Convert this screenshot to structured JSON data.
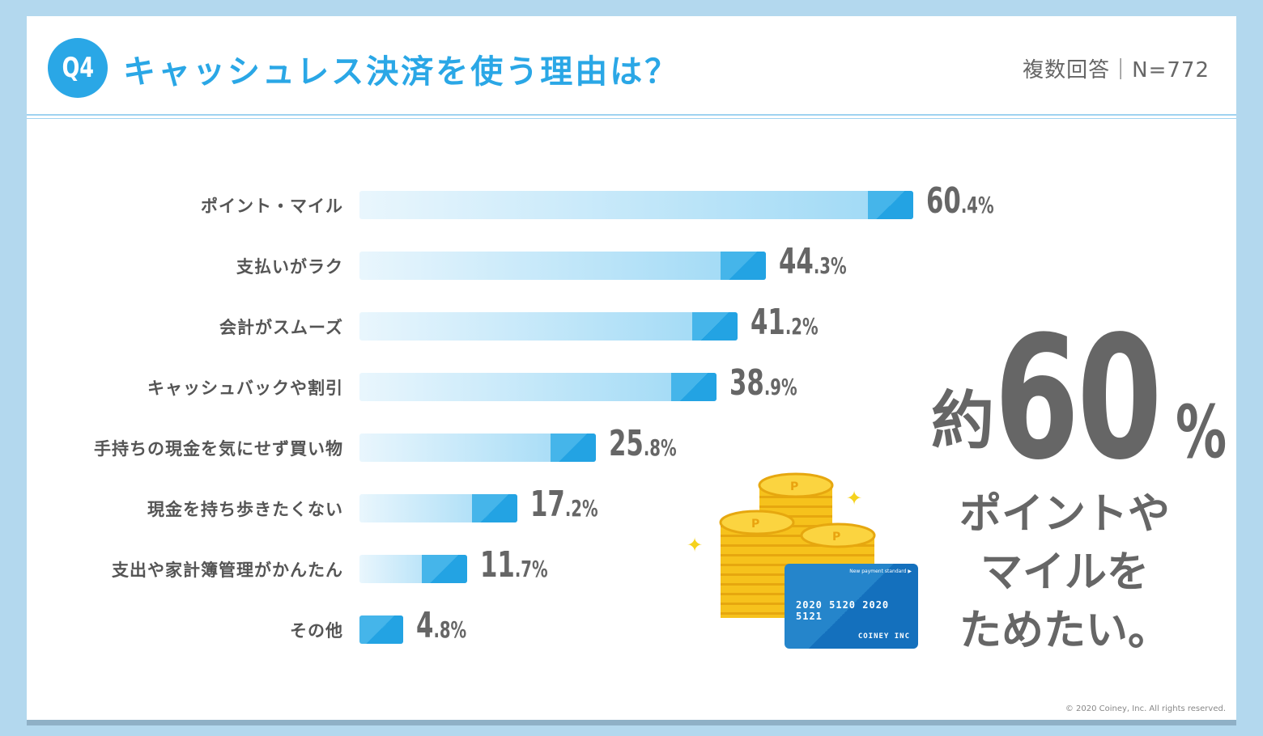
{
  "header": {
    "badge": "Q4",
    "title": "キャッシュレス決済を使う理由は？",
    "meta": "複数回答｜N=772"
  },
  "chart_data": {
    "type": "bar",
    "orientation": "horizontal",
    "categories": [
      "ポイント・マイル",
      "支払いがラク",
      "会計がスムーズ",
      "キャッシュバックや割引",
      "手持ちの現金を気にせず買い物",
      "現金を持ち歩きたくない",
      "支出や家計簿管理がかんたん",
      "その他"
    ],
    "values": [
      60.4,
      44.3,
      41.2,
      38.9,
      25.8,
      17.2,
      11.7,
      4.8
    ],
    "unit": "%",
    "colors": {
      "bar_start": "#e9f6fd",
      "bar_end": "#9cd8f5",
      "accent": "#2aa7e6"
    }
  },
  "callout": {
    "prefix": "約",
    "number": "60",
    "percent": "%",
    "lines": [
      "ポイントや",
      "マイルを",
      "ためたい。"
    ]
  },
  "illustration": {
    "card_tag": "New payment standard ▶",
    "card_number": "2020 5120 2020 5121",
    "card_company": "COINEY INC",
    "coin_letter": "P"
  },
  "footer": {
    "copyright": "© 2020 Coiney, Inc. All rights reserved."
  }
}
